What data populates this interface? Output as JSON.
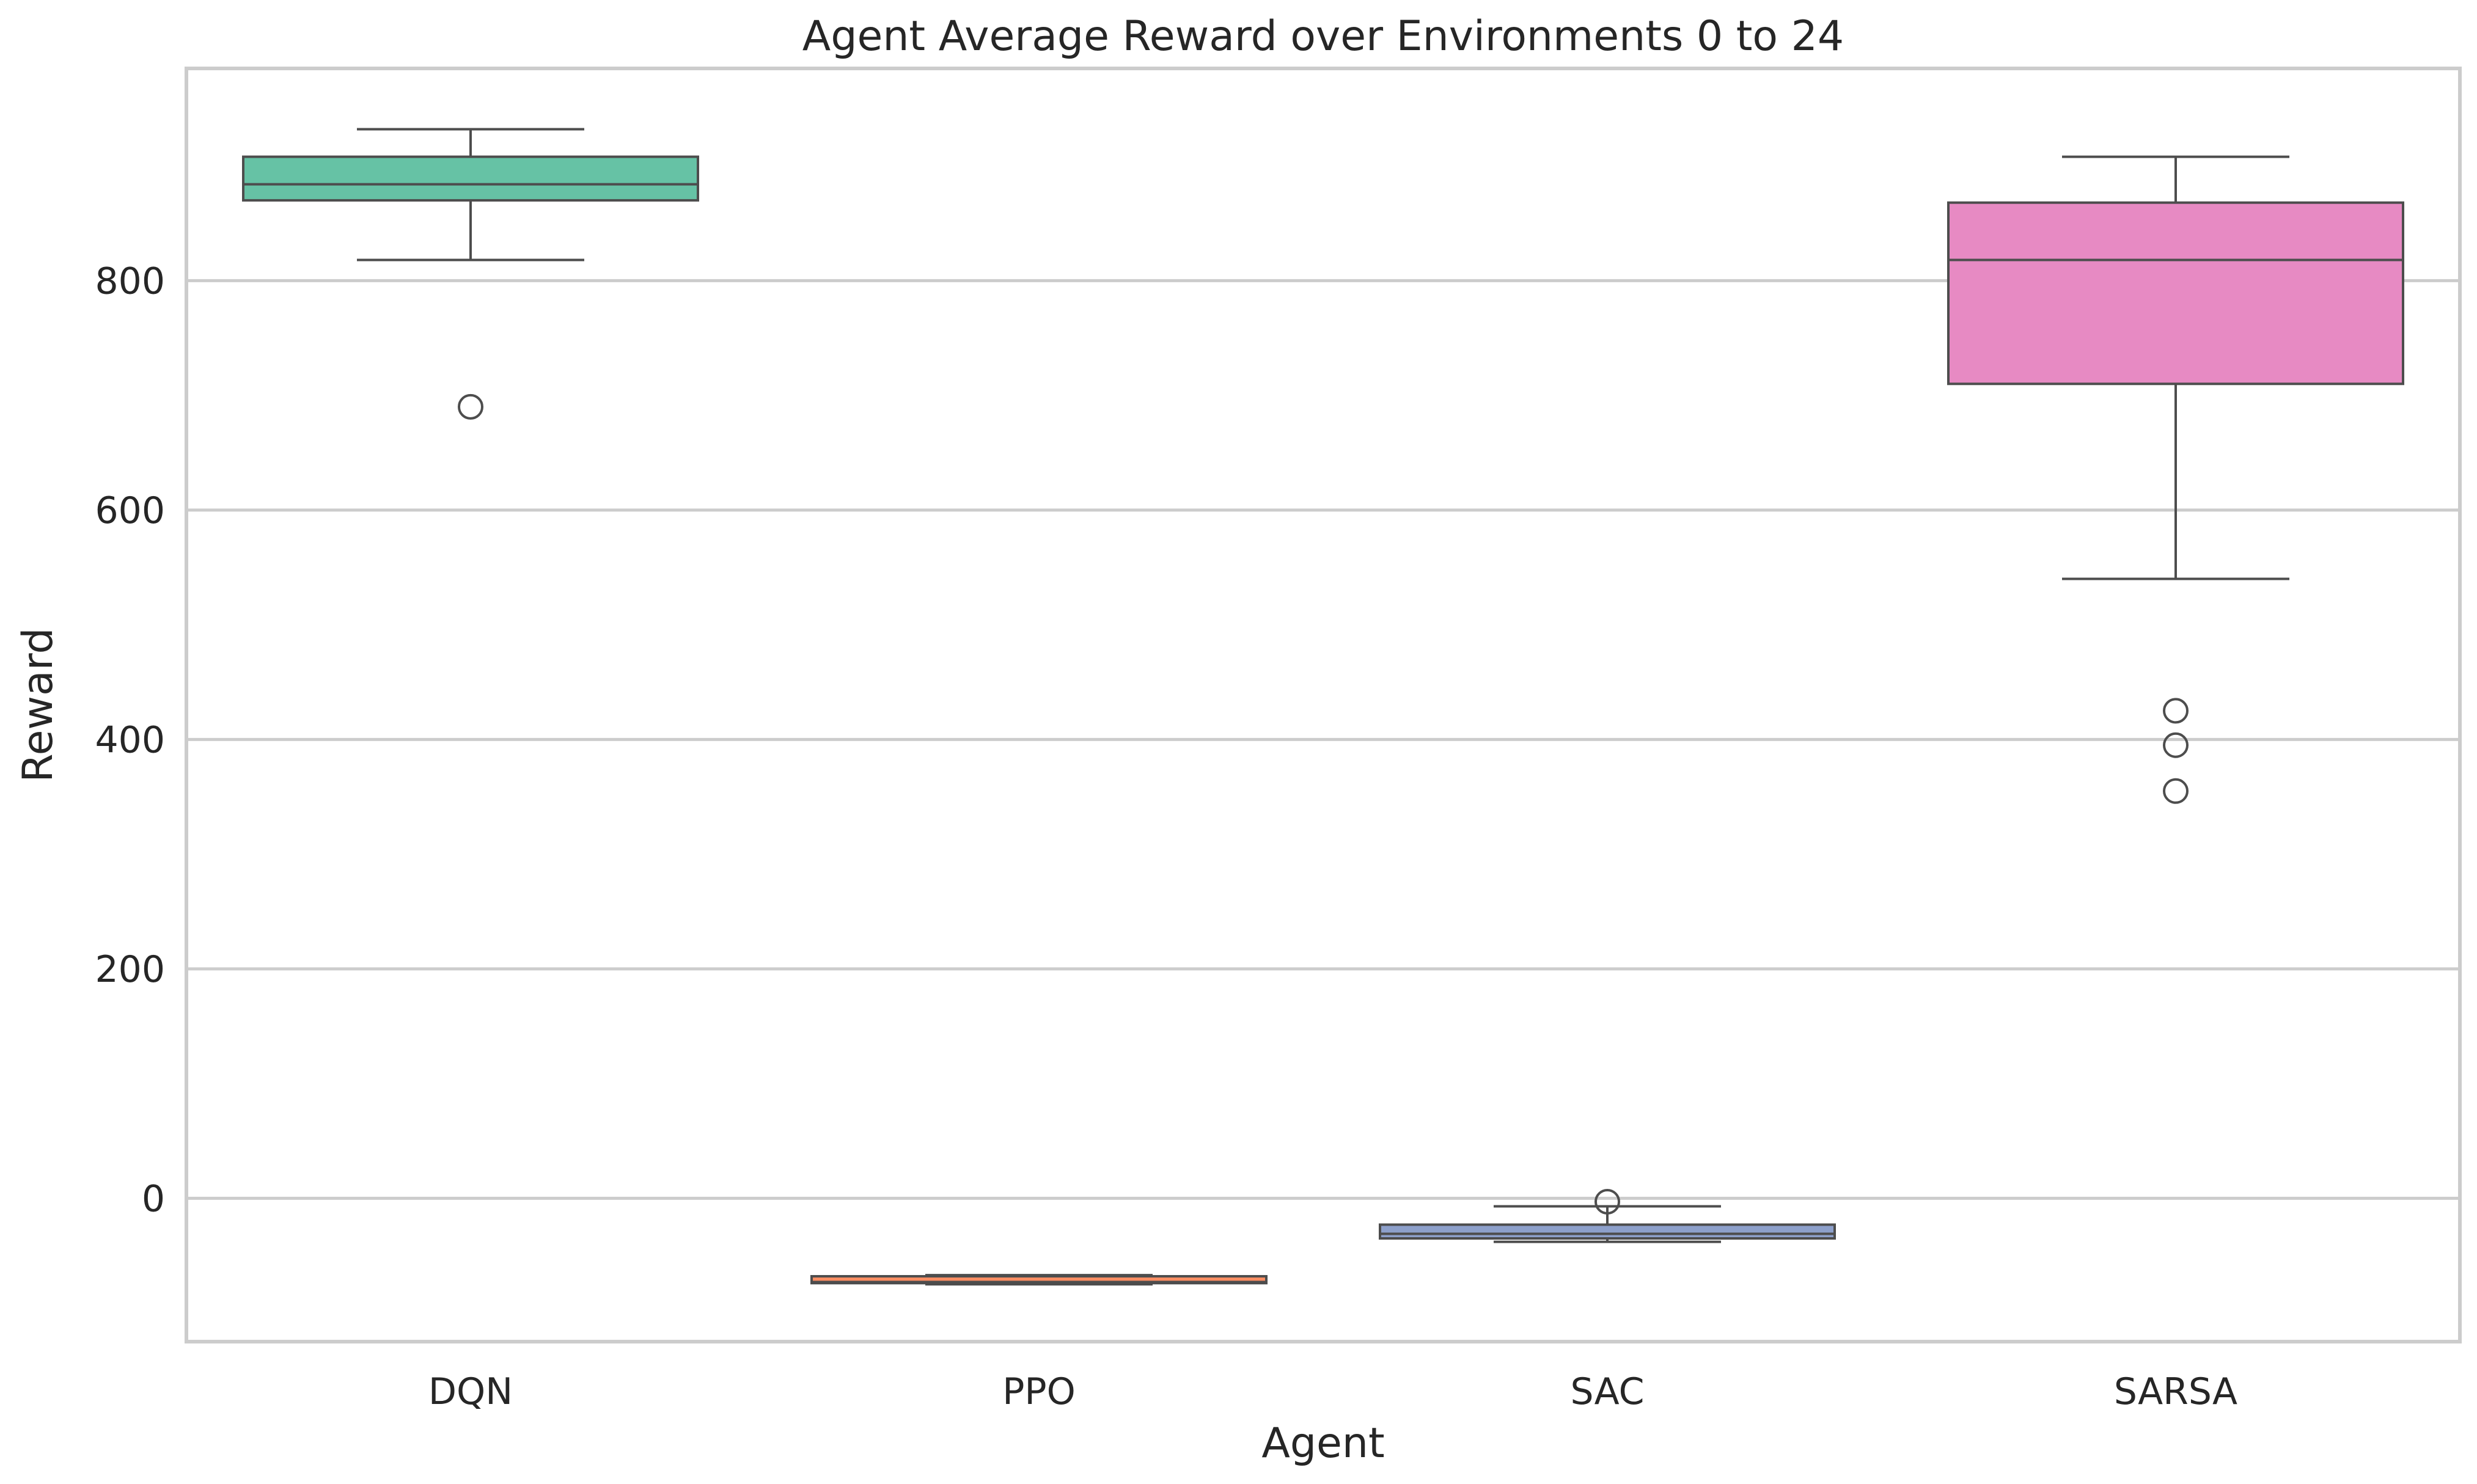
{
  "chart_data": {
    "type": "box",
    "title": "Agent Average Reward over Environments 0 to 24",
    "xlabel": "Agent",
    "ylabel": "Reward",
    "ylim": [
      -125,
      985
    ],
    "yticks": [
      0,
      200,
      400,
      600,
      800
    ],
    "grid": true,
    "categories": [
      "DQN",
      "PPO",
      "SAC",
      "SARSA"
    ],
    "boxes": [
      {
        "category": "DQN",
        "whislo": 818,
        "q1": 870,
        "med": 884,
        "q3": 908,
        "whishi": 932,
        "fliers": [
          690
        ],
        "color": "#66c2a5"
      },
      {
        "category": "PPO",
        "whislo": -75,
        "q1": -74,
        "med": -73,
        "q3": -68,
        "whishi": -67,
        "fliers": [],
        "color": "#fc8d62"
      },
      {
        "category": "SAC",
        "whislo": -38,
        "q1": -35,
        "med": -31,
        "q3": -23,
        "whishi": -7,
        "fliers": [
          -3
        ],
        "color": "#8da0cb"
      },
      {
        "category": "SARSA",
        "whislo": 540,
        "q1": 710,
        "med": 818,
        "q3": 868,
        "whishi": 908,
        "fliers": [
          425,
          395,
          355
        ],
        "color": "#e78ac3"
      }
    ]
  }
}
